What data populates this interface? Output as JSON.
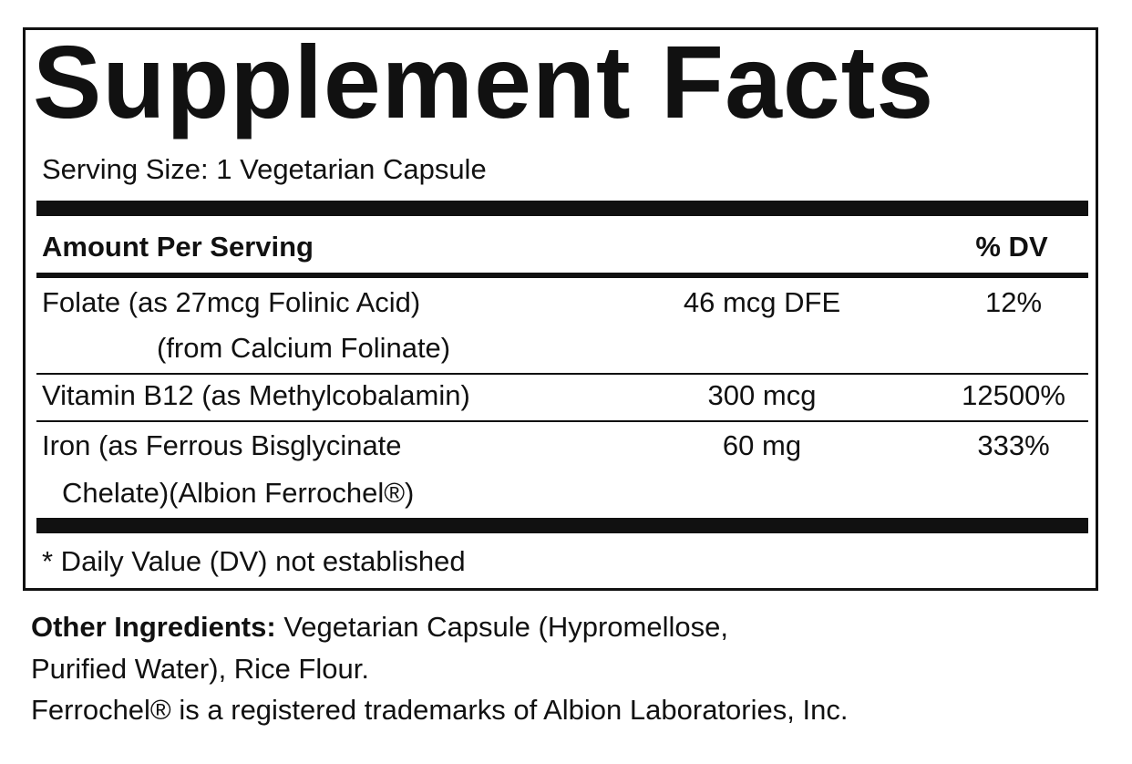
{
  "title": "Supplement Facts",
  "serving_size": "Serving Size:  1 Vegetarian Capsule",
  "header": {
    "amount": "Amount Per Serving",
    "dv": "% DV"
  },
  "rows": [
    {
      "name": "Folate (as 27mcg Folinic Acid)",
      "name2": "(from Calcium Folinate)",
      "amount": "46 mcg DFE",
      "dv": "12%"
    },
    {
      "name": "Vitamin B12 (as Methylcobalamin)",
      "amount": "300 mcg",
      "dv": "12500%"
    },
    {
      "name": "Iron (as Ferrous Bisglycinate",
      "name2": "Chelate)(Albion Ferrochel®)",
      "amount": "60 mg",
      "dv": "333%"
    }
  ],
  "footnote": "* Daily Value (DV) not established",
  "other": {
    "label": "Other Ingredients:",
    "text1": " Vegetarian Capsule (Hypromellose,",
    "text2": "Purified Water), Rice Flour.",
    "trademark": "Ferrochel® is a registered trademarks of Albion Laboratories, Inc."
  }
}
